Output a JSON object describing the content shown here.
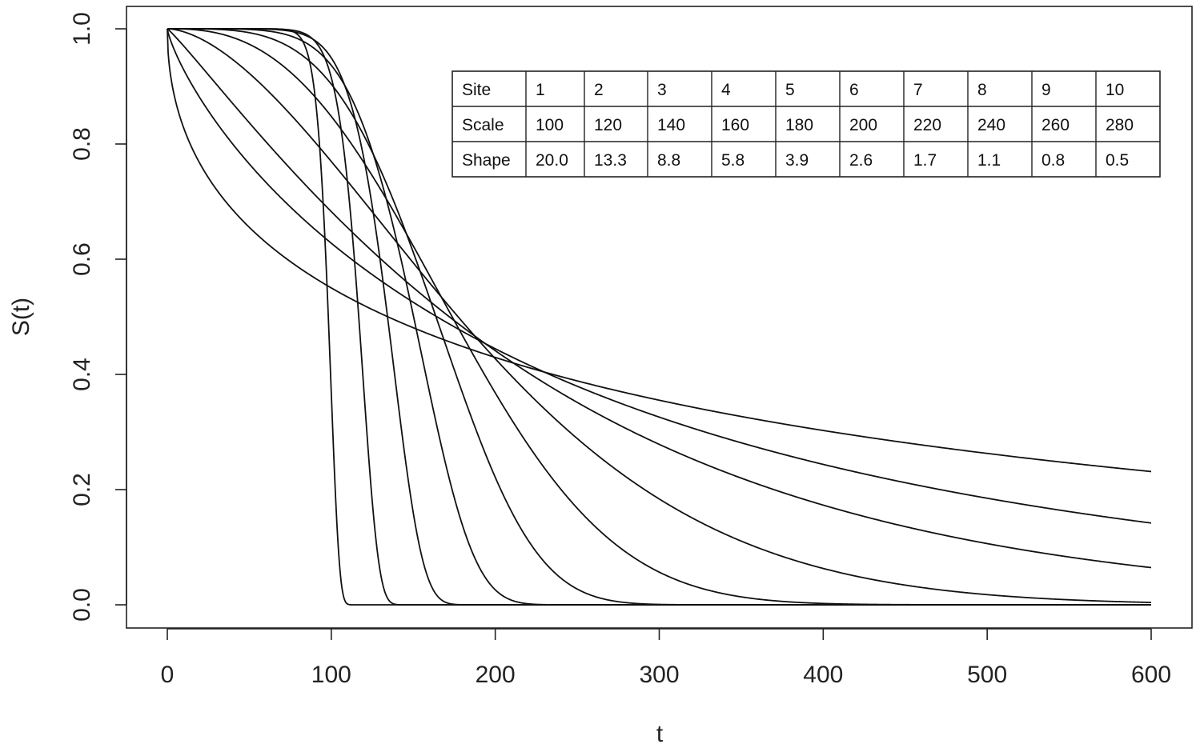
{
  "chart_data": {
    "type": "line",
    "title": "",
    "xlabel": "t",
    "ylabel": "S(t)",
    "xlim": [
      0,
      600
    ],
    "ylim": [
      0,
      1
    ],
    "xticks": [
      0,
      100,
      200,
      300,
      400,
      500,
      600
    ],
    "xtick_labels": [
      "0",
      "100",
      "200",
      "300",
      "400",
      "500",
      "600"
    ],
    "yticks": [
      0,
      0.2,
      0.4,
      0.6,
      0.8,
      1.0
    ],
    "ytick_labels": [
      "0.0",
      "0.2",
      "0.4",
      "0.6",
      "0.8",
      "1.0"
    ],
    "grid": false,
    "line_color": "#111111",
    "model": "weibull_survival",
    "series": [
      {
        "scale": 100,
        "shape": 20.0
      },
      {
        "scale": 120,
        "shape": 13.3
      },
      {
        "scale": 140,
        "shape": 8.8
      },
      {
        "scale": 160,
        "shape": 5.8
      },
      {
        "scale": 180,
        "shape": 3.9
      },
      {
        "scale": 200,
        "shape": 2.6
      },
      {
        "scale": 220,
        "shape": 1.7
      },
      {
        "scale": 240,
        "shape": 1.1
      },
      {
        "scale": 260,
        "shape": 0.8
      },
      {
        "scale": 280,
        "shape": 0.5
      }
    ],
    "legend_table": {
      "placement": "top-right",
      "rows": [
        [
          "Site",
          "1",
          "2",
          "3",
          "4",
          "5",
          "6",
          "7",
          "8",
          "9",
          "10"
        ],
        [
          "Scale",
          "100",
          "120",
          "140",
          "160",
          "180",
          "200",
          "220",
          "240",
          "260",
          "280"
        ],
        [
          "Shape",
          "20.0",
          "13.3",
          "8.8",
          "5.8",
          "3.9",
          "2.6",
          "1.7",
          "1.1",
          "0.8",
          "0.5"
        ]
      ]
    }
  }
}
